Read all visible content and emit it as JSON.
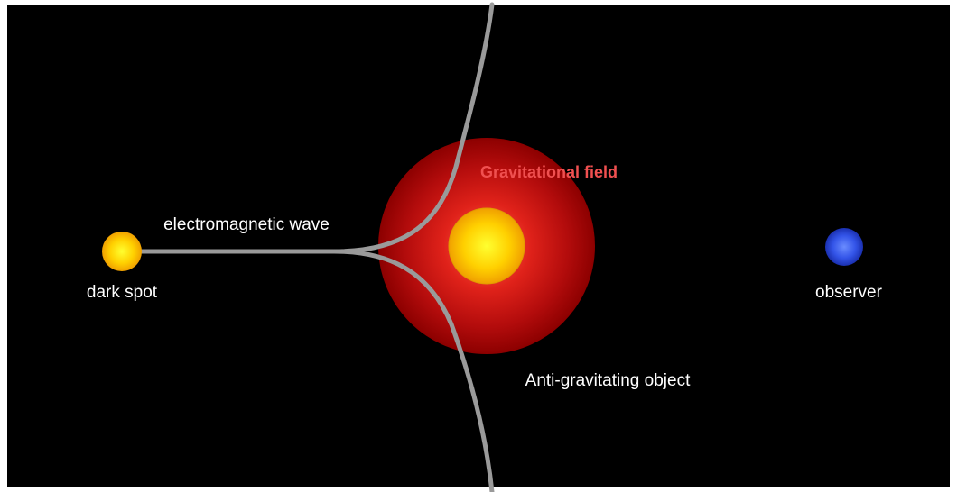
{
  "labels": {
    "wave": "electromagnetic wave",
    "source": "dark spot",
    "field": "Gravitational field",
    "observer": "observer",
    "object": "Anti-gravitating object"
  }
}
